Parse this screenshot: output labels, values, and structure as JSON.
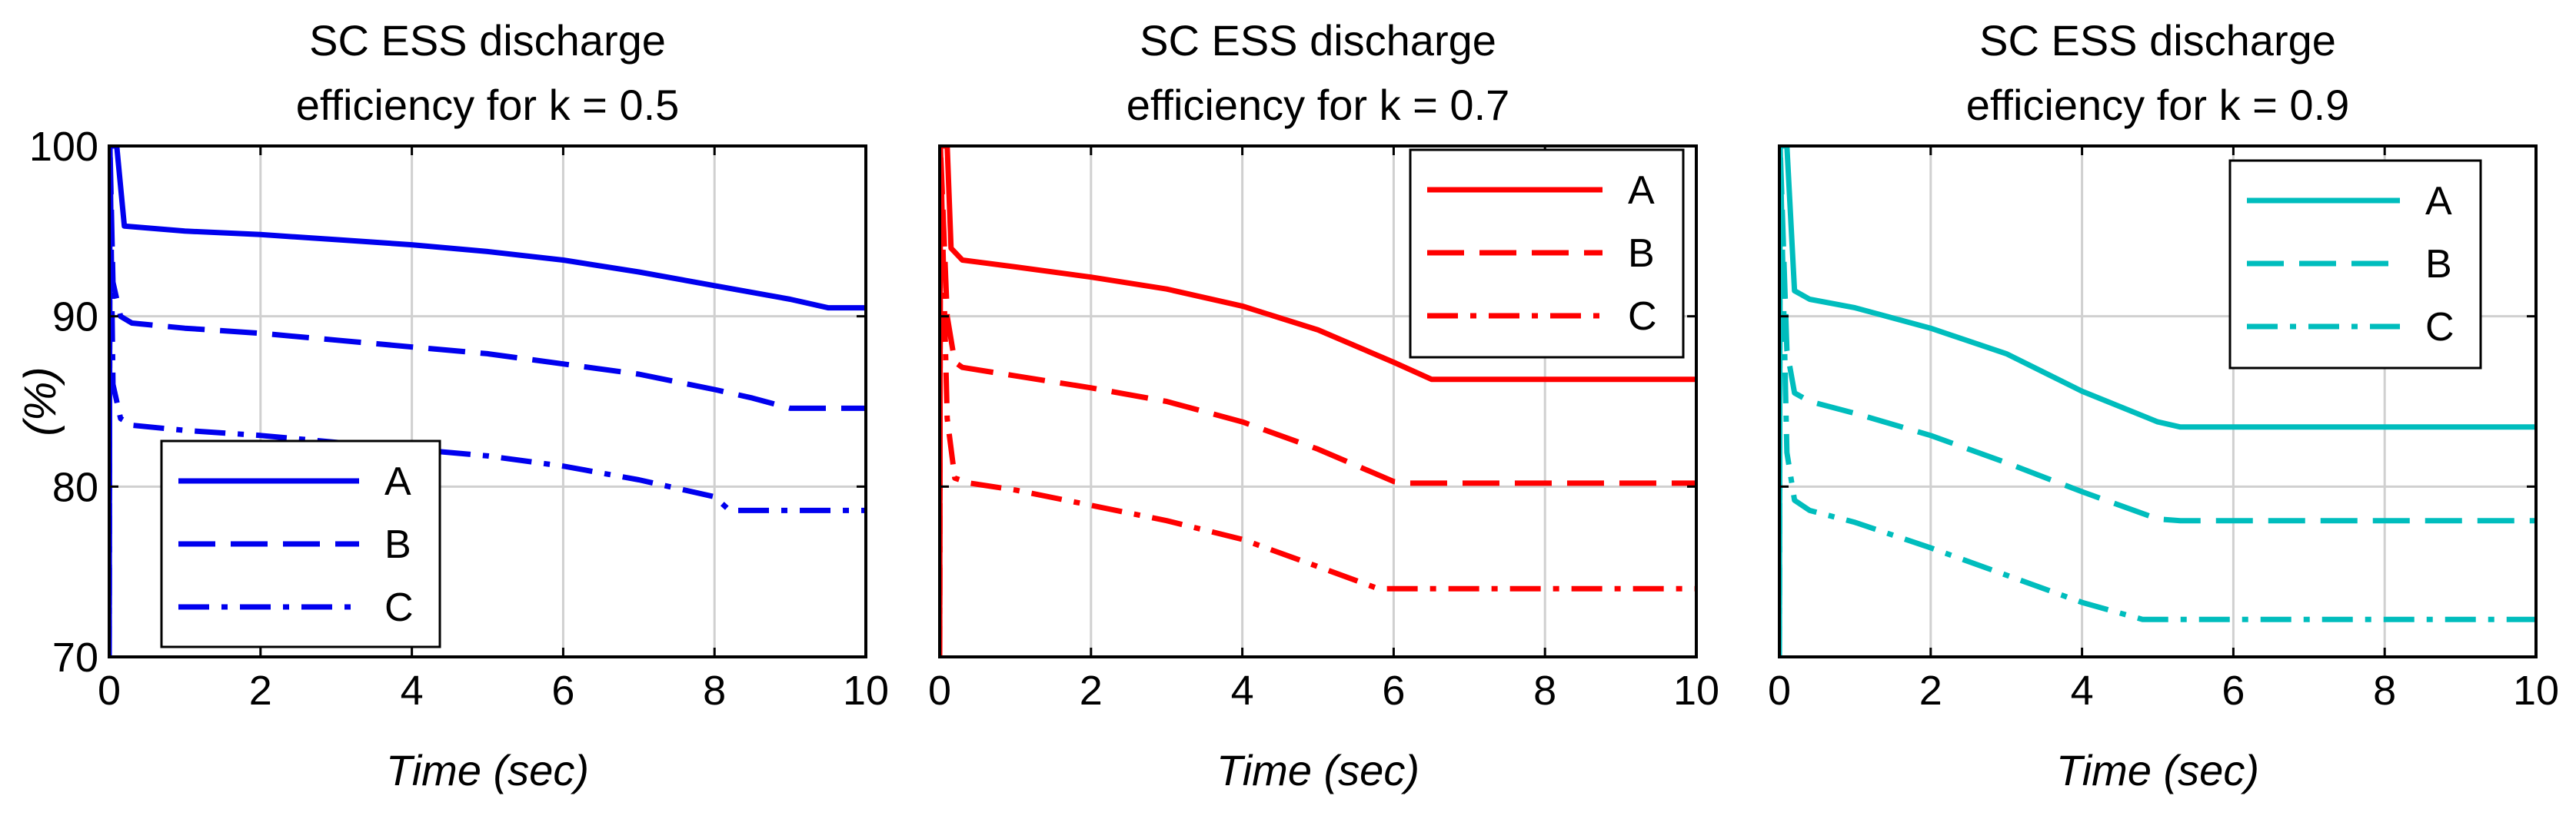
{
  "chart_data": [
    {
      "type": "line",
      "title": [
        "SC ESS discharge",
        "efficiency for k = 0.5"
      ],
      "xlabel": "Time (sec)",
      "ylabel": "(%)",
      "xlim": [
        0,
        10
      ],
      "ylim": [
        70,
        100
      ],
      "xticks": [
        0,
        2,
        4,
        6,
        8,
        10
      ],
      "yticks": [
        70,
        80,
        90,
        100
      ],
      "show_yticks": true,
      "grid": true,
      "color": "#0000ee",
      "legend_position": "bottom-left",
      "series": [
        {
          "name": "A",
          "style": "solid",
          "points": [
            [
              0,
              70
            ],
            [
              0.01,
              100
            ],
            [
              0.1,
              100
            ],
            [
              0.2,
              95.3
            ],
            [
              1,
              95.0
            ],
            [
              2,
              94.8
            ],
            [
              3,
              94.5
            ],
            [
              4,
              94.2
            ],
            [
              5,
              93.8
            ],
            [
              6,
              93.3
            ],
            [
              7,
              92.6
            ],
            [
              8,
              91.8
            ],
            [
              9,
              91.0
            ],
            [
              9.5,
              90.5
            ],
            [
              10,
              90.5
            ]
          ]
        },
        {
          "name": "B",
          "style": "dashed",
          "points": [
            [
              0,
              70
            ],
            [
              0.01,
              100
            ],
            [
              0.05,
              92
            ],
            [
              0.15,
              90
            ],
            [
              0.3,
              89.6
            ],
            [
              1,
              89.3
            ],
            [
              2,
              89.0
            ],
            [
              3,
              88.6
            ],
            [
              4,
              88.2
            ],
            [
              5,
              87.8
            ],
            [
              6,
              87.2
            ],
            [
              7,
              86.6
            ],
            [
              8,
              85.7
            ],
            [
              8.5,
              85.2
            ],
            [
              9,
              84.6
            ],
            [
              10,
              84.6
            ]
          ]
        },
        {
          "name": "C",
          "style": "dashdot",
          "points": [
            [
              0,
              70
            ],
            [
              0.01,
              100
            ],
            [
              0.05,
              86
            ],
            [
              0.15,
              84
            ],
            [
              0.3,
              83.6
            ],
            [
              1,
              83.3
            ],
            [
              2,
              83.0
            ],
            [
              3,
              82.6
            ],
            [
              4,
              82.2
            ],
            [
              5,
              81.8
            ],
            [
              6,
              81.2
            ],
            [
              7,
              80.4
            ],
            [
              8,
              79.4
            ],
            [
              8.2,
              78.6
            ],
            [
              10,
              78.6
            ]
          ]
        }
      ]
    },
    {
      "type": "line",
      "title": [
        "SC ESS discharge",
        "efficiency for k = 0.7"
      ],
      "xlabel": "Time (sec)",
      "ylabel": "",
      "xlim": [
        0,
        10
      ],
      "ylim": [
        70,
        100
      ],
      "xticks": [
        0,
        2,
        4,
        6,
        8,
        10
      ],
      "yticks": [
        70,
        80,
        90,
        100
      ],
      "show_yticks": false,
      "grid": true,
      "color": "#ff0000",
      "legend_position": "top-right",
      "series": [
        {
          "name": "A",
          "style": "solid",
          "points": [
            [
              0,
              70
            ],
            [
              0.01,
              100
            ],
            [
              0.1,
              100
            ],
            [
              0.15,
              94
            ],
            [
              0.3,
              93.3
            ],
            [
              1,
              92.9
            ],
            [
              2,
              92.3
            ],
            [
              3,
              91.6
            ],
            [
              4,
              90.6
            ],
            [
              5,
              89.2
            ],
            [
              6,
              87.3
            ],
            [
              6.5,
              86.3
            ],
            [
              10,
              86.3
            ]
          ]
        },
        {
          "name": "B",
          "style": "dashed",
          "points": [
            [
              0,
              70
            ],
            [
              0.01,
              100
            ],
            [
              0.1,
              90
            ],
            [
              0.2,
              87.3
            ],
            [
              0.3,
              87.0
            ],
            [
              1,
              86.5
            ],
            [
              2,
              85.8
            ],
            [
              3,
              85.0
            ],
            [
              4,
              83.8
            ],
            [
              5,
              82.2
            ],
            [
              6,
              80.3
            ],
            [
              6.2,
              80.2
            ],
            [
              10,
              80.2
            ]
          ]
        },
        {
          "name": "C",
          "style": "dashdot",
          "points": [
            [
              0,
              70
            ],
            [
              0.01,
              100
            ],
            [
              0.1,
              84
            ],
            [
              0.2,
              80.5
            ],
            [
              0.4,
              80.2
            ],
            [
              1,
              79.8
            ],
            [
              2,
              78.9
            ],
            [
              3,
              78.0
            ],
            [
              4,
              76.9
            ],
            [
              5,
              75.3
            ],
            [
              5.8,
              74.0
            ],
            [
              10,
              74.0
            ]
          ]
        }
      ]
    },
    {
      "type": "line",
      "title": [
        "SC ESS discharge",
        "efficiency for k = 0.9"
      ],
      "xlabel": "Time (sec)",
      "ylabel": "",
      "xlim": [
        0,
        10
      ],
      "ylim": [
        70,
        100
      ],
      "xticks": [
        0,
        2,
        4,
        6,
        8,
        10
      ],
      "yticks": [
        70,
        80,
        90,
        100
      ],
      "show_yticks": false,
      "grid": true,
      "color": "#00bdbd",
      "legend_position": "top-right",
      "series": [
        {
          "name": "A",
          "style": "solid",
          "points": [
            [
              0,
              70
            ],
            [
              0.01,
              100
            ],
            [
              0.1,
              100
            ],
            [
              0.2,
              91.5
            ],
            [
              0.4,
              91.0
            ],
            [
              1,
              90.5
            ],
            [
              2,
              89.3
            ],
            [
              3,
              87.8
            ],
            [
              4,
              85.6
            ],
            [
              5,
              83.8
            ],
            [
              5.3,
              83.5
            ],
            [
              10,
              83.5
            ]
          ]
        },
        {
          "name": "B",
          "style": "dashed",
          "points": [
            [
              0,
              70
            ],
            [
              0.01,
              100
            ],
            [
              0.1,
              88
            ],
            [
              0.2,
              85.5
            ],
            [
              0.4,
              85.0
            ],
            [
              1,
              84.3
            ],
            [
              2,
              83.0
            ],
            [
              3,
              81.4
            ],
            [
              4,
              79.7
            ],
            [
              5,
              78.1
            ],
            [
              5.3,
              78.0
            ],
            [
              10,
              78.0
            ]
          ]
        },
        {
          "name": "C",
          "style": "dashdot",
          "points": [
            [
              0,
              70
            ],
            [
              0.01,
              100
            ],
            [
              0.1,
              82
            ],
            [
              0.2,
              79.2
            ],
            [
              0.4,
              78.6
            ],
            [
              1,
              77.9
            ],
            [
              2,
              76.4
            ],
            [
              3,
              74.8
            ],
            [
              4,
              73.2
            ],
            [
              4.8,
              72.2
            ],
            [
              10,
              72.2
            ]
          ]
        }
      ]
    }
  ]
}
